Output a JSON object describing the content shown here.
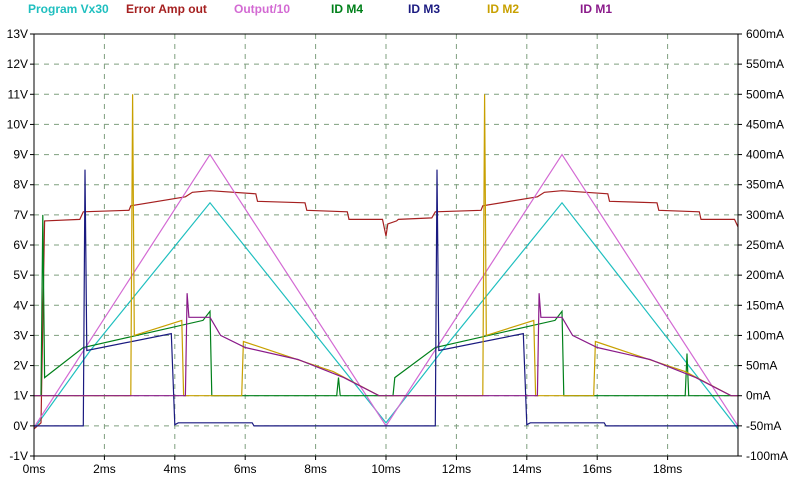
{
  "chart_data": {
    "type": "line",
    "x_ticks": [
      "0ms",
      "2ms",
      "4ms",
      "6ms",
      "8ms",
      "10ms",
      "12ms",
      "14ms",
      "16ms",
      "18ms"
    ],
    "x_range_ms": [
      0,
      20
    ],
    "left_ticks": [
      "13V",
      "12V",
      "11V",
      "10V",
      "9V",
      "8V",
      "7V",
      "6V",
      "5V",
      "4V",
      "3V",
      "2V",
      "1V",
      "0V",
      "-1V"
    ],
    "left_range_V": [
      -1,
      13
    ],
    "right_ticks": [
      "600mA",
      "550mA",
      "500mA",
      "450mA",
      "400mA",
      "350mA",
      "300mA",
      "250mA",
      "200mA",
      "150mA",
      "100mA",
      "50mA",
      "0mA",
      "-50mA",
      "-100mA"
    ],
    "right_range_mA": [
      -100,
      600
    ],
    "grid": true,
    "legend_position": "top",
    "series": [
      {
        "name": "Program Vx30",
        "axis": "left",
        "color": "#1fbfbf",
        "points": [
          [
            0,
            -0.1
          ],
          [
            1.6,
            2.5
          ],
          [
            5.0,
            7.4
          ],
          [
            10.0,
            0.1
          ],
          [
            11.6,
            2.5
          ],
          [
            15.0,
            7.4
          ],
          [
            20.0,
            -0.1
          ]
        ]
      },
      {
        "name": "Error Amp out",
        "axis": "left",
        "color": "#a52020",
        "points": [
          [
            0,
            -0.1
          ],
          [
            0.2,
            0.1
          ],
          [
            0.3,
            6.8
          ],
          [
            1.3,
            6.85
          ],
          [
            1.4,
            7.1
          ],
          [
            2.7,
            7.15
          ],
          [
            2.75,
            7.3
          ],
          [
            4.3,
            7.6
          ],
          [
            4.5,
            7.75
          ],
          [
            5.0,
            7.8
          ],
          [
            6.3,
            7.7
          ],
          [
            6.35,
            7.45
          ],
          [
            7.7,
            7.4
          ],
          [
            7.75,
            7.15
          ],
          [
            8.9,
            7.1
          ],
          [
            8.95,
            6.85
          ],
          [
            9.9,
            6.85
          ],
          [
            10.0,
            6.3
          ],
          [
            10.05,
            6.7
          ],
          [
            10.3,
            6.8
          ],
          [
            10.35,
            6.85
          ],
          [
            11.3,
            6.9
          ],
          [
            11.4,
            7.1
          ],
          [
            12.7,
            7.15
          ],
          [
            12.75,
            7.3
          ],
          [
            14.3,
            7.6
          ],
          [
            14.5,
            7.75
          ],
          [
            15.0,
            7.8
          ],
          [
            16.3,
            7.7
          ],
          [
            16.35,
            7.45
          ],
          [
            17.7,
            7.4
          ],
          [
            17.75,
            7.15
          ],
          [
            18.9,
            7.1
          ],
          [
            18.95,
            6.85
          ],
          [
            19.9,
            6.85
          ],
          [
            20.0,
            6.6
          ]
        ]
      },
      {
        "name": "Output/10",
        "axis": "left",
        "color": "#d36ad3",
        "points": [
          [
            0,
            -0.05
          ],
          [
            5.0,
            9.0
          ],
          [
            10.0,
            0.0
          ],
          [
            15.0,
            9.0
          ],
          [
            20.0,
            0.0
          ]
        ]
      },
      {
        "name": "ID M4",
        "axis": "right",
        "color": "#00801a",
        "points": [
          [
            0,
            0
          ],
          [
            0.2,
            0
          ],
          [
            0.25,
            300
          ],
          [
            0.3,
            30
          ],
          [
            1.4,
            80
          ],
          [
            4.8,
            125
          ],
          [
            5.0,
            140
          ],
          [
            5.05,
            0
          ],
          [
            6.2,
            0
          ],
          [
            6.25,
            0
          ],
          [
            8.6,
            0
          ],
          [
            8.65,
            30
          ],
          [
            8.7,
            0
          ],
          [
            10.0,
            0
          ],
          [
            10.2,
            0
          ],
          [
            10.25,
            30
          ],
          [
            11.4,
            80
          ],
          [
            14.8,
            125
          ],
          [
            15.0,
            140
          ],
          [
            15.05,
            0
          ],
          [
            18.5,
            0
          ],
          [
            18.55,
            70
          ],
          [
            18.6,
            0
          ],
          [
            20,
            0
          ]
        ]
      },
      {
        "name": "ID M3",
        "axis": "right",
        "color": "#1a1a80",
        "points": [
          [
            0,
            -50
          ],
          [
            1.4,
            -50
          ],
          [
            1.45,
            375
          ],
          [
            1.5,
            75
          ],
          [
            3.9,
            103
          ],
          [
            4.0,
            -48
          ],
          [
            4.1,
            -45
          ],
          [
            6.2,
            -45
          ],
          [
            6.25,
            -50
          ],
          [
            11.4,
            -50
          ],
          [
            11.45,
            375
          ],
          [
            11.5,
            75
          ],
          [
            13.9,
            103
          ],
          [
            14.0,
            -48
          ],
          [
            14.1,
            -45
          ],
          [
            16.2,
            -45
          ],
          [
            16.25,
            -50
          ],
          [
            20,
            -50
          ]
        ]
      },
      {
        "name": "ID M2",
        "axis": "right",
        "color": "#c8a000",
        "points": [
          [
            0,
            0
          ],
          [
            2.75,
            0
          ],
          [
            2.8,
            500
          ],
          [
            2.85,
            100
          ],
          [
            4.2,
            125
          ],
          [
            4.25,
            0
          ],
          [
            5.9,
            0
          ],
          [
            5.95,
            90
          ],
          [
            8.5,
            40
          ],
          [
            9.8,
            0
          ],
          [
            12.75,
            0
          ],
          [
            12.8,
            500
          ],
          [
            12.85,
            100
          ],
          [
            14.2,
            125
          ],
          [
            14.25,
            0
          ],
          [
            15.9,
            0
          ],
          [
            15.95,
            90
          ],
          [
            18.5,
            40
          ],
          [
            19.8,
            0
          ],
          [
            20,
            0
          ]
        ]
      },
      {
        "name": "ID M1",
        "axis": "right",
        "color": "#8a1a8a",
        "points": [
          [
            0,
            0
          ],
          [
            4.3,
            0
          ],
          [
            4.35,
            170
          ],
          [
            4.4,
            130
          ],
          [
            5.0,
            130
          ],
          [
            5.3,
            100
          ],
          [
            6.0,
            80
          ],
          [
            7.5,
            60
          ],
          [
            8.8,
            30
          ],
          [
            9.8,
            0
          ],
          [
            14.3,
            0
          ],
          [
            14.35,
            170
          ],
          [
            14.4,
            130
          ],
          [
            15.0,
            130
          ],
          [
            15.3,
            100
          ],
          [
            16.0,
            80
          ],
          [
            17.5,
            60
          ],
          [
            18.8,
            30
          ],
          [
            19.8,
            0
          ],
          [
            20,
            0
          ]
        ]
      }
    ]
  }
}
